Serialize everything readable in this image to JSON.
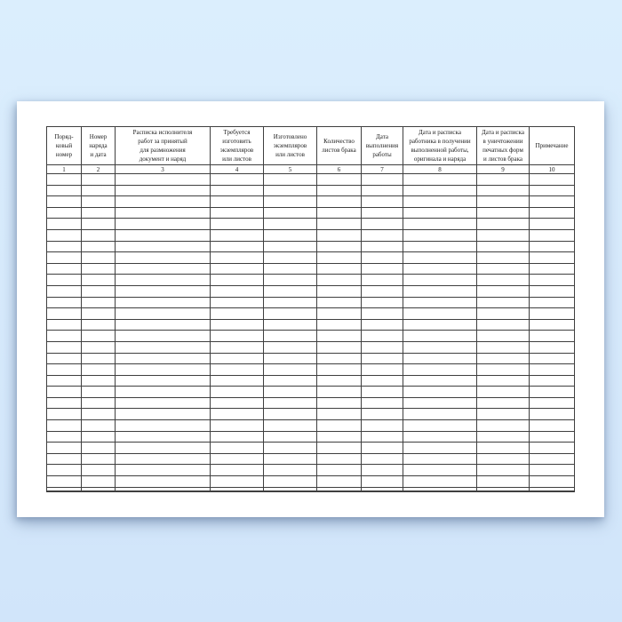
{
  "background": {
    "top_color": "#dbeefd",
    "bottom_color": "#d1e5fa"
  },
  "paper": {
    "color": "#ffffff"
  },
  "table": {
    "border_color": "#3f3f3f",
    "text_color": "#1c1c1c",
    "columns": [
      {
        "number": "1",
        "header": "Поряд-\nковый\nномер"
      },
      {
        "number": "2",
        "header": "Номер\nнаряда\nи дата"
      },
      {
        "number": "3",
        "header": "Расписка исполнителя\nработ за принятый\nдля размножения\nдокумент и наряд"
      },
      {
        "number": "4",
        "header": "Требуется\nизготовить\nэкземпляров\nили листов"
      },
      {
        "number": "5",
        "header": "Изготовлено\nэкземпляров\nили листов"
      },
      {
        "number": "6",
        "header": "Количество\nлистов брака"
      },
      {
        "number": "7",
        "header": "Дата\nвыполнения\nработы"
      },
      {
        "number": "8",
        "header": "Дата и расписка\nработника в получении\nвыполненной работы,\nоригинала и наряда"
      },
      {
        "number": "9",
        "header": "Дата и расписка\nв уничтожении\nпечатных форм\nи листов брака"
      },
      {
        "number": "10",
        "header": "Примечание"
      }
    ],
    "empty_rows": 28
  }
}
